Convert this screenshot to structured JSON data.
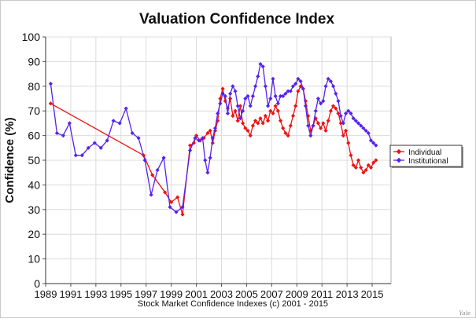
{
  "credit": "Yale",
  "chart_data": {
    "type": "line",
    "title": "Valuation Confidence Index",
    "ylabel": "Confidence (%)",
    "xlabel": "Stock Market Confidence Indexes (c) 2001 - 2015",
    "xlim": [
      1989,
      2016.5
    ],
    "ylim": [
      0,
      100
    ],
    "grid": true,
    "legend_position": "right",
    "x_ticks": [
      "1989",
      "1991",
      "1993",
      "1995",
      "1997",
      "1999",
      "2001",
      "2003",
      "2005",
      "2007",
      "2009",
      "2011",
      "2013",
      "2015"
    ],
    "y_ticks": [
      "0",
      "10",
      "20",
      "30",
      "40",
      "50",
      "60",
      "70",
      "80",
      "90",
      "100"
    ],
    "series": [
      {
        "name": "Individual",
        "color": "#ee1111",
        "marker": "diamond",
        "points": [
          [
            1989.4,
            73
          ],
          [
            1996.8,
            52
          ],
          [
            1997.5,
            44
          ],
          [
            1998.5,
            37
          ],
          [
            1999.0,
            33
          ],
          [
            1999.5,
            35
          ],
          [
            1999.9,
            28
          ],
          [
            2000.5,
            56
          ],
          [
            2000.8,
            57
          ],
          [
            2001.0,
            60
          ],
          [
            2001.3,
            58
          ],
          [
            2001.6,
            59
          ],
          [
            2001.9,
            61
          ],
          [
            2002.1,
            62
          ],
          [
            2002.3,
            57
          ],
          [
            2002.5,
            62
          ],
          [
            2002.7,
            66
          ],
          [
            2002.9,
            75
          ],
          [
            2003.1,
            79
          ],
          [
            2003.3,
            74
          ],
          [
            2003.5,
            71
          ],
          [
            2003.7,
            75
          ],
          [
            2003.9,
            68
          ],
          [
            2004.1,
            70
          ],
          [
            2004.3,
            66
          ],
          [
            2004.5,
            72
          ],
          [
            2004.7,
            65
          ],
          [
            2004.9,
            63
          ],
          [
            2005.1,
            62
          ],
          [
            2005.3,
            60
          ],
          [
            2005.5,
            64
          ],
          [
            2005.7,
            66
          ],
          [
            2005.9,
            65
          ],
          [
            2006.1,
            67
          ],
          [
            2006.3,
            65
          ],
          [
            2006.5,
            68
          ],
          [
            2006.7,
            66
          ],
          [
            2006.9,
            70
          ],
          [
            2007.1,
            69
          ],
          [
            2007.3,
            72
          ],
          [
            2007.5,
            70
          ],
          [
            2007.7,
            66
          ],
          [
            2007.9,
            63
          ],
          [
            2008.1,
            61
          ],
          [
            2008.3,
            60
          ],
          [
            2008.5,
            64
          ],
          [
            2008.7,
            68
          ],
          [
            2008.9,
            72
          ],
          [
            2009.1,
            78
          ],
          [
            2009.3,
            80
          ],
          [
            2009.5,
            79
          ],
          [
            2009.7,
            74
          ],
          [
            2009.9,
            68
          ],
          [
            2010.1,
            62
          ],
          [
            2010.3,
            64
          ],
          [
            2010.5,
            67
          ],
          [
            2010.7,
            65
          ],
          [
            2010.9,
            63
          ],
          [
            2011.1,
            65
          ],
          [
            2011.3,
            62
          ],
          [
            2011.5,
            66
          ],
          [
            2011.7,
            70
          ],
          [
            2011.9,
            72
          ],
          [
            2012.1,
            71
          ],
          [
            2012.3,
            69
          ],
          [
            2012.5,
            65
          ],
          [
            2012.7,
            60
          ],
          [
            2012.9,
            62
          ],
          [
            2013.1,
            57
          ],
          [
            2013.3,
            52
          ],
          [
            2013.5,
            48
          ],
          [
            2013.7,
            47
          ],
          [
            2013.9,
            50
          ],
          [
            2014.1,
            47
          ],
          [
            2014.3,
            45
          ],
          [
            2014.5,
            46
          ],
          [
            2014.7,
            48
          ],
          [
            2014.9,
            47
          ],
          [
            2015.1,
            49
          ],
          [
            2015.3,
            50
          ]
        ]
      },
      {
        "name": "Institutional",
        "color": "#5522ee",
        "marker": "diamond",
        "points": [
          [
            1989.4,
            81
          ],
          [
            1989.9,
            61
          ],
          [
            1990.4,
            60
          ],
          [
            1990.9,
            65
          ],
          [
            1991.4,
            52
          ],
          [
            1991.9,
            52
          ],
          [
            1992.4,
            55
          ],
          [
            1992.9,
            57
          ],
          [
            1993.4,
            55
          ],
          [
            1993.9,
            58
          ],
          [
            1994.4,
            66
          ],
          [
            1994.9,
            65
          ],
          [
            1995.4,
            71
          ],
          [
            1995.9,
            61
          ],
          [
            1996.4,
            59
          ],
          [
            1996.9,
            50
          ],
          [
            1997.4,
            36
          ],
          [
            1997.9,
            46
          ],
          [
            1998.4,
            51
          ],
          [
            1998.9,
            31
          ],
          [
            1999.4,
            29
          ],
          [
            1999.9,
            31
          ],
          [
            2000.5,
            54
          ],
          [
            2000.9,
            59
          ],
          [
            2001.2,
            58
          ],
          [
            2001.5,
            59
          ],
          [
            2001.7,
            50
          ],
          [
            2001.9,
            45
          ],
          [
            2002.1,
            51
          ],
          [
            2002.3,
            59
          ],
          [
            2002.5,
            63
          ],
          [
            2002.7,
            69
          ],
          [
            2002.9,
            73
          ],
          [
            2003.1,
            77
          ],
          [
            2003.3,
            76
          ],
          [
            2003.5,
            69
          ],
          [
            2003.7,
            77
          ],
          [
            2003.9,
            80
          ],
          [
            2004.1,
            78
          ],
          [
            2004.3,
            72
          ],
          [
            2004.5,
            67
          ],
          [
            2004.7,
            70
          ],
          [
            2004.9,
            75
          ],
          [
            2005.1,
            76
          ],
          [
            2005.3,
            72
          ],
          [
            2005.5,
            76
          ],
          [
            2005.7,
            80
          ],
          [
            2005.9,
            84
          ],
          [
            2006.1,
            89
          ],
          [
            2006.3,
            88
          ],
          [
            2006.5,
            80
          ],
          [
            2006.7,
            72
          ],
          [
            2006.9,
            75
          ],
          [
            2007.1,
            83
          ],
          [
            2007.3,
            76
          ],
          [
            2007.5,
            73
          ],
          [
            2007.7,
            76
          ],
          [
            2007.9,
            76
          ],
          [
            2008.1,
            77
          ],
          [
            2008.3,
            78
          ],
          [
            2008.5,
            78
          ],
          [
            2008.7,
            80
          ],
          [
            2008.9,
            81
          ],
          [
            2009.1,
            83
          ],
          [
            2009.3,
            82
          ],
          [
            2009.5,
            79
          ],
          [
            2009.7,
            72
          ],
          [
            2009.9,
            64
          ],
          [
            2010.1,
            60
          ],
          [
            2010.3,
            64
          ],
          [
            2010.5,
            70
          ],
          [
            2010.7,
            75
          ],
          [
            2010.9,
            73
          ],
          [
            2011.1,
            74
          ],
          [
            2011.3,
            80
          ],
          [
            2011.5,
            83
          ],
          [
            2011.7,
            82
          ],
          [
            2011.9,
            80
          ],
          [
            2012.1,
            77
          ],
          [
            2012.3,
            74
          ],
          [
            2012.5,
            68
          ],
          [
            2012.7,
            65
          ],
          [
            2012.9,
            69
          ],
          [
            2013.1,
            70
          ],
          [
            2013.3,
            69
          ],
          [
            2013.5,
            67
          ],
          [
            2013.7,
            66
          ],
          [
            2013.9,
            65
          ],
          [
            2014.1,
            64
          ],
          [
            2014.3,
            63
          ],
          [
            2014.5,
            62
          ],
          [
            2014.7,
            61
          ],
          [
            2014.9,
            58
          ],
          [
            2015.1,
            57
          ],
          [
            2015.3,
            56
          ]
        ]
      }
    ]
  }
}
